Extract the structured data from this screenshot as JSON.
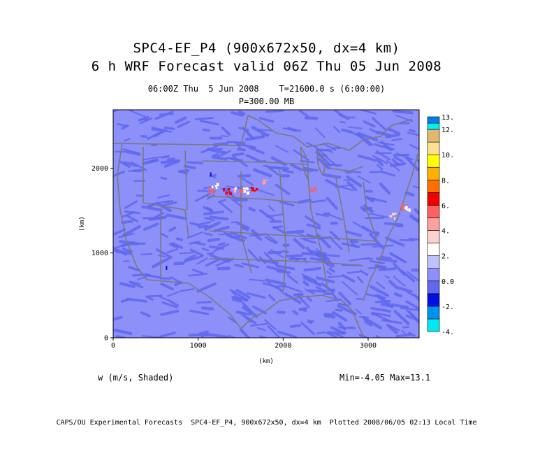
{
  "header": {
    "title_line1": "SPC4-EF_P4 (900x672x50, dx=4 km)",
    "title_line2": "6 h WRF Forecast valid 06Z Thu 05 Jun 2008",
    "subtitle_line1": "06:00Z Thu  5 Jun 2008    T=21600.0 s (6:00:00)",
    "subtitle_line2": "P=300.00 MB"
  },
  "variable_label": "w (m/s, Shaded)",
  "min_max": "Min=-4.05 Max=13.1",
  "footer": "CAPS/OU Experimental Forecasts  SPC4-EF_P4, 900x672x50, dx=4 km  Plotted 2008/06/05 02:13 Local Time",
  "chart_data": {
    "type": "heatmap",
    "title": "SPC4-EF_P4 (900x672x50, dx=4 km)",
    "xlabel": "(km)",
    "ylabel": "(km)",
    "xlim": [
      0,
      3600
    ],
    "ylim": [
      0,
      2688
    ],
    "x_ticks": [
      "0",
      "1000",
      "2000",
      "3000"
    ],
    "y_ticks": [
      "0",
      "1000",
      "2000"
    ],
    "field": "w (m/s)",
    "value_min": -4.05,
    "value_max": 13.1,
    "colorbar": {
      "tick_labels": [
        "13.",
        "12.",
        "10.",
        "8.",
        "6.",
        "4.",
        "2.",
        "0.0",
        "-2.",
        "-4."
      ],
      "levels": [
        {
          "from": -4,
          "to": -3,
          "color": "#00e8f0"
        },
        {
          "from": -3,
          "to": -2,
          "color": "#0090f0"
        },
        {
          "from": -2,
          "to": -1,
          "color": "#0010e0"
        },
        {
          "from": -1,
          "to": 0,
          "color": "#6068f0"
        },
        {
          "from": 0,
          "to": 1,
          "color": "#8c90f8"
        },
        {
          "from": 1,
          "to": 2,
          "color": "#c0c0fa"
        },
        {
          "from": 2,
          "to": 3,
          "color": "#ffffff"
        },
        {
          "from": 3,
          "to": 4,
          "color": "#ffd0d0"
        },
        {
          "from": 4,
          "to": 5,
          "color": "#ffa0a0"
        },
        {
          "from": 5,
          "to": 6,
          "color": "#ff6060"
        },
        {
          "from": 6,
          "to": 7,
          "color": "#f00000"
        },
        {
          "from": 7,
          "to": 8,
          "color": "#ff7000"
        },
        {
          "from": 8,
          "to": 9,
          "color": "#ffb000"
        },
        {
          "from": 9,
          "to": 10,
          "color": "#ffff00"
        },
        {
          "from": 10,
          "to": 11,
          "color": "#ffe090"
        },
        {
          "from": 11,
          "to": 12,
          "color": "#e0b870"
        },
        {
          "from": 12,
          "to": 12.5,
          "color": "#00f0f0"
        },
        {
          "from": 12.5,
          "to": 13,
          "color": "#0080f0"
        }
      ]
    },
    "background_color": "#8c90f8",
    "pattern_color": "#6068f0",
    "map_line_color": "#7a7a7a",
    "updraft_clusters": [
      {
        "x": 1130,
        "y": 1750,
        "color": "#ff6060"
      },
      {
        "x": 1180,
        "y": 1800,
        "color": "#ffffff"
      },
      {
        "x": 1330,
        "y": 1740,
        "color": "#f00000"
      },
      {
        "x": 1400,
        "y": 1760,
        "color": "#ffd0d0"
      },
      {
        "x": 1480,
        "y": 1730,
        "color": "#ff6060"
      },
      {
        "x": 1560,
        "y": 1750,
        "color": "#ffffff"
      },
      {
        "x": 1650,
        "y": 1760,
        "color": "#f00000"
      },
      {
        "x": 1760,
        "y": 1850,
        "color": "#ffa0a0"
      },
      {
        "x": 2340,
        "y": 1760,
        "color": "#ff6060"
      },
      {
        "x": 3270,
        "y": 1450,
        "color": "#ffd0d0"
      },
      {
        "x": 3420,
        "y": 1560,
        "color": "#ff6060"
      },
      {
        "x": 3460,
        "y": 1540,
        "color": "#ffffff"
      }
    ],
    "downdraft_spots": [
      {
        "x": 620,
        "y": 850,
        "color": "#0010e0"
      },
      {
        "x": 1140,
        "y": 1950,
        "color": "#0010e0"
      }
    ]
  }
}
